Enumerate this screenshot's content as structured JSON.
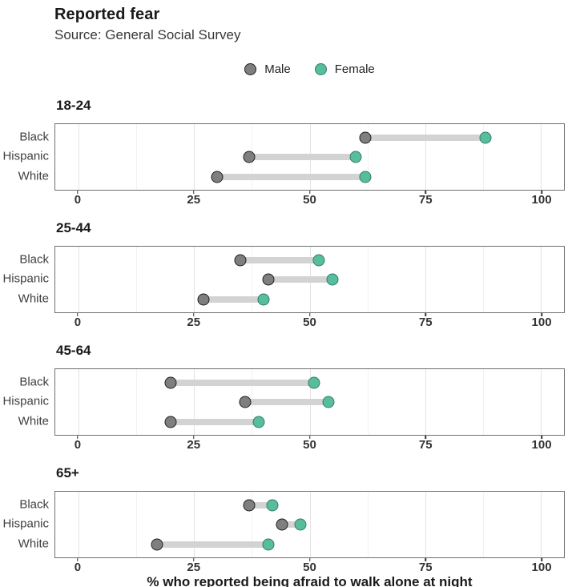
{
  "header": {
    "title": "Reported fear",
    "subtitle": "Source: General Social Survey"
  },
  "legend": [
    {
      "label": "Male",
      "color": "#7f7f7f",
      "stroke": "#1f1f1f"
    },
    {
      "label": "Female",
      "color": "#57be9d",
      "stroke": "#35796a"
    }
  ],
  "colors": {
    "male_fill": "#7f7f7f",
    "male_stroke": "#1f1f1f",
    "female_fill": "#57be9d",
    "female_stroke": "#35796a",
    "connector": "#d3d3d3",
    "grid_major": "#e3e3e3",
    "grid_minor": "#f1f1f1",
    "panel_border": "#6f6f6f"
  },
  "chart_data": {
    "type": "dumbbell",
    "title": "Reported fear",
    "subtitle": "Source: General Social Survey",
    "xlabel": "% who reported being afraid to walk alone at night",
    "xlim": [
      -5,
      105
    ],
    "x_ticks": [
      0,
      25,
      50,
      75,
      100
    ],
    "x_minor_gridlines": [
      12.5,
      37.5,
      62.5,
      87.5
    ],
    "grid": true,
    "legend_position": "top-center",
    "series_names": [
      "Male",
      "Female"
    ],
    "row_categories": [
      "Black",
      "Hispanic",
      "White"
    ],
    "panels": [
      {
        "age_group": "18-24",
        "rows": [
          {
            "label": "Black",
            "male": 62,
            "female": 88
          },
          {
            "label": "Hispanic",
            "male": 37,
            "female": 60
          },
          {
            "label": "White",
            "male": 30,
            "female": 62
          }
        ]
      },
      {
        "age_group": "25-44",
        "rows": [
          {
            "label": "Black",
            "male": 35,
            "female": 52
          },
          {
            "label": "Hispanic",
            "male": 41,
            "female": 55
          },
          {
            "label": "White",
            "male": 27,
            "female": 40
          }
        ]
      },
      {
        "age_group": "45-64",
        "rows": [
          {
            "label": "Black",
            "male": 20,
            "female": 51
          },
          {
            "label": "Hispanic",
            "male": 36,
            "female": 54
          },
          {
            "label": "White",
            "male": 20,
            "female": 39
          }
        ]
      },
      {
        "age_group": "65+",
        "rows": [
          {
            "label": "Black",
            "male": 37,
            "female": 42
          },
          {
            "label": "Hispanic",
            "male": 44,
            "female": 48
          },
          {
            "label": "White",
            "male": 17,
            "female": 41
          }
        ]
      }
    ]
  }
}
